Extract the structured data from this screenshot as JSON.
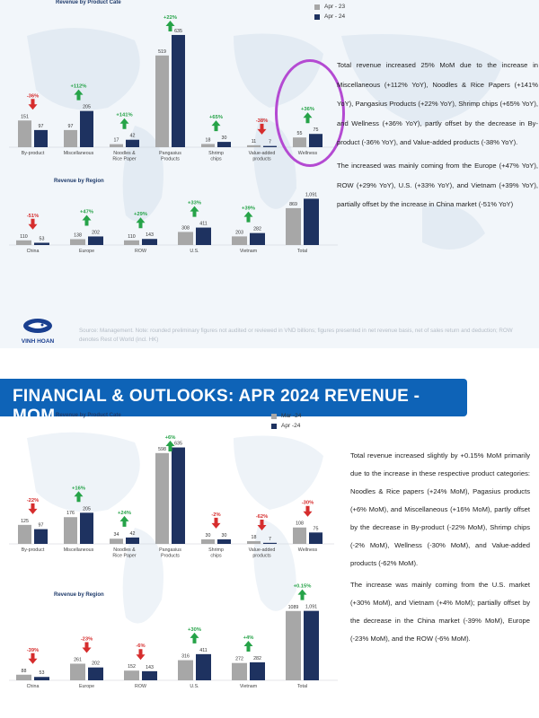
{
  "colors": {
    "prev": "#a7a7a7",
    "curr": "#1e3260",
    "up": "#26a348",
    "down": "#d62d2d",
    "header": "#0e63b7",
    "highlight": "#b44ad2"
  },
  "top": {
    "product_title": "Revenue by Product Cate",
    "region_title": "Revenue by Region",
    "legend": [
      "Apr - 23",
      "Apr - 24"
    ],
    "paragraphs": [
      "Total revenue increased 25% MoM due to the increase in Miscellaneous (+112% YoY), Noodles & Rice Papers (+141% YoY), Pangasius Products (+22% YoY), Shrimp chips (+65% YoY), and Wellness (+36% YoY), partly offset by the decrease in By-product (-36% YoY), and Value-added products (-38% YoY).",
      "The increased was mainly coming from the Europe (+47% YoY), ROW (+29% YoY), U.S. (+33% YoY), and Vietnam (+39% YoY), partially offset by the increase in China market (-51% YoY)"
    ],
    "source": "Source: Management. Note: rounded preliminary figures not audited or reviewed in VND billions; figures presented in net revenue basis, net of sales return and deduction; ROW denotes Rest of World (incl. HK)",
    "logo_name": "VINH HOAN"
  },
  "bottom": {
    "header": "FINANCIAL & OUTLOOKS: APR 2024 REVENUE - MOM",
    "product_title": "Revenue by Product Cate",
    "region_title": "Revenue by Region",
    "legend": [
      "Mar -24",
      "Apr -24"
    ],
    "paragraphs": [
      "Total revenue increased slightly by +0.15% MoM primarily due to the increase in these respective product categories: Noodles & Rice papers (+24% MoM), Pagasius products (+6% MoM), and Miscellaneous (+16% MoM), partly offset by the decrease in By-product (-22% MoM), Shrimp chips (-2% MoM), Wellness (-30% MoM), and Value-added products (-62% MoM).",
      "The increase was mainly coming from the U.S. market (+30% MoM), and Vietnam (+4% MoM); partially offset by the decrease in the China market (-39% MoM), Europe (-23% MoM), and the ROW (-6% MoM)."
    ]
  },
  "chart_data": [
    {
      "type": "bar",
      "title": "Revenue by Product Cate",
      "categories": [
        "By-product",
        "Miscellaneous",
        "Noodles & Rice Paper",
        "Pangasius Products",
        "Shrimp chips",
        "Value-added products",
        "Wellness"
      ],
      "series": [
        {
          "name": "Apr - 23",
          "values": [
            151,
            97,
            17,
            519,
            18,
            11,
            55
          ]
        },
        {
          "name": "Apr - 24",
          "values": [
            97,
            205,
            42,
            635,
            30,
            7,
            75
          ]
        }
      ],
      "changes": [
        "-36%",
        "+112%",
        "+141%",
        "+22%",
        "+65%",
        "-38%",
        "+36%"
      ],
      "ylim": [
        0,
        650
      ]
    },
    {
      "type": "bar",
      "title": "Revenue by Region",
      "categories": [
        "China",
        "Europe",
        "ROW",
        "U.S.",
        "Vietnam",
        "Total"
      ],
      "series": [
        {
          "name": "Apr - 23",
          "values": [
            110,
            138,
            110,
            308,
            203,
            869
          ]
        },
        {
          "name": "Apr - 24",
          "values": [
            53,
            202,
            143,
            411,
            282,
            1091
          ]
        }
      ],
      "changes": [
        "-51%",
        "+47%",
        "+29%",
        "+33%",
        "+39%",
        ""
      ],
      "ylim": [
        0,
        1100
      ]
    },
    {
      "type": "bar",
      "title": "Revenue by Product Cate",
      "categories": [
        "By-product",
        "Miscellaneous",
        "Noodles & Rice Paper",
        "Pangasius Products",
        "Shrimp chips",
        "Value-added products",
        "Wellness"
      ],
      "series": [
        {
          "name": "Mar -24",
          "values": [
            125,
            176,
            34,
            598,
            30,
            18,
            108
          ]
        },
        {
          "name": "Apr -24",
          "values": [
            97,
            205,
            42,
            635,
            30,
            7,
            75
          ]
        }
      ],
      "changes": [
        "-22%",
        "+16%",
        "+24%",
        "+6%",
        "-2%",
        "-62%",
        "-30%"
      ],
      "ylim": [
        0,
        650
      ]
    },
    {
      "type": "bar",
      "title": "Revenue by Region",
      "categories": [
        "China",
        "Europe",
        "ROW",
        "U.S.",
        "Vietnam",
        "Total"
      ],
      "series": [
        {
          "name": "Mar -24",
          "values": [
            88,
            261,
            152,
            316,
            272,
            1089
          ]
        },
        {
          "name": "Apr -24",
          "values": [
            53,
            202,
            143,
            411,
            282,
            1091
          ]
        }
      ],
      "changes": [
        "-39%",
        "-23%",
        "-6%",
        "+30%",
        "+4%",
        "+0.15%"
      ],
      "ylim": [
        0,
        1100
      ]
    }
  ]
}
